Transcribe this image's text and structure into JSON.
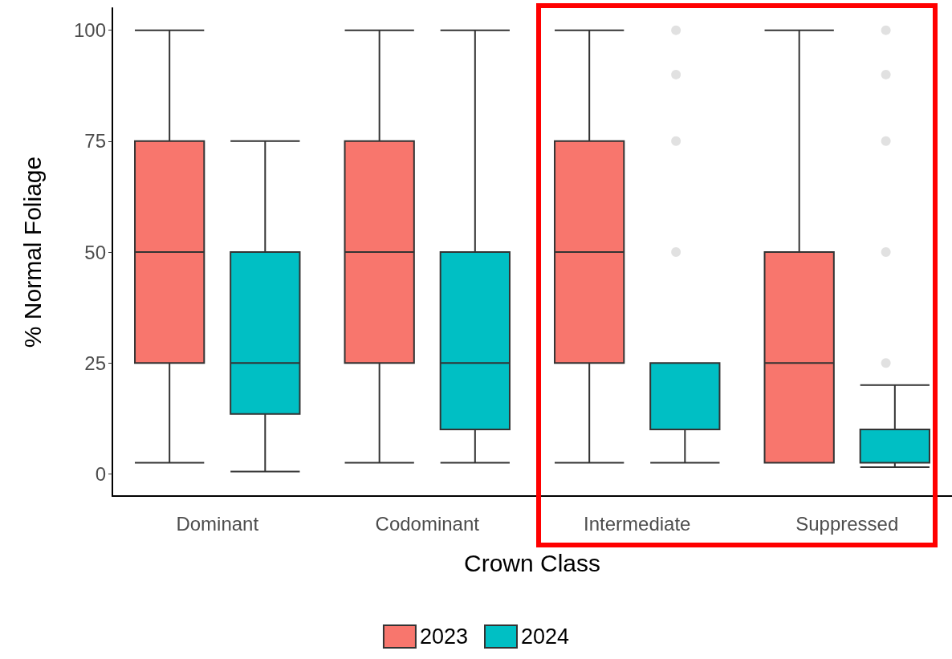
{
  "chart_data": {
    "type": "box",
    "xlabel": "Crown Class",
    "ylabel": "% Normal Foliage",
    "categories": [
      "Dominant",
      "Codominant",
      "Intermediate",
      "Suppressed"
    ],
    "ylim": [
      -5,
      105
    ],
    "yticks": [
      0,
      25,
      50,
      75,
      100
    ],
    "grid": false,
    "legend": "bottom",
    "series": [
      {
        "name": "2023",
        "color": "#f8766d",
        "boxes": [
          {
            "low": 2.5,
            "q1": 25,
            "median": 50,
            "q3": 75,
            "high": 100
          },
          {
            "low": 2.5,
            "q1": 25,
            "median": 50,
            "q3": 75,
            "high": 100
          },
          {
            "low": 2.5,
            "q1": 25,
            "median": 50,
            "q3": 75,
            "high": 100
          },
          {
            "low": 2.5,
            "q1": 2.5,
            "median": 25,
            "q3": 50,
            "high": 100
          }
        ]
      },
      {
        "name": "2024",
        "color": "#00bfc4",
        "boxes": [
          {
            "low": 0.5,
            "q1": 13.5,
            "median": 25,
            "q3": 50,
            "high": 75
          },
          {
            "low": 2.5,
            "q1": 10,
            "median": 25,
            "q3": 50,
            "high": 100
          },
          {
            "low": 2.5,
            "q1": 10,
            "median": 10,
            "q3": 25,
            "high": 25,
            "outliers": [
              50,
              75,
              90,
              100
            ]
          },
          {
            "low": 1.5,
            "q1": 2.5,
            "median": 2.5,
            "q3": 10,
            "high": 20,
            "outliers": [
              25,
              50,
              75,
              90,
              100
            ]
          }
        ]
      }
    ]
  }
}
